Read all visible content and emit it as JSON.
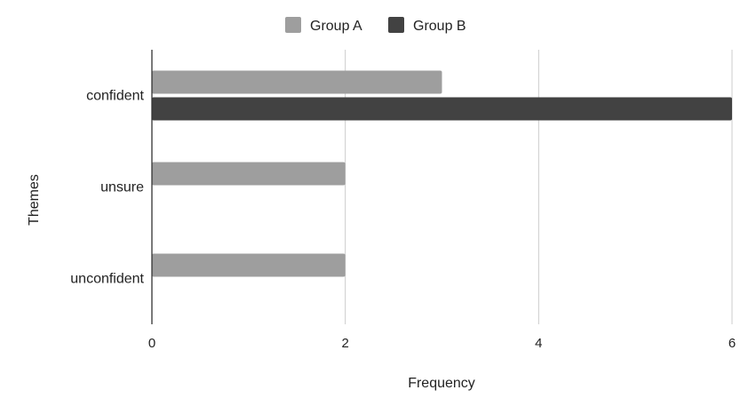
{
  "chart_data": {
    "type": "bar",
    "orientation": "horizontal",
    "categories": [
      "confident",
      "unsure",
      "unconfident"
    ],
    "series": [
      {
        "name": "Group A",
        "values": [
          3,
          2,
          2
        ],
        "color": "#9e9e9e"
      },
      {
        "name": "Group B",
        "values": [
          6,
          0,
          0
        ],
        "color": "#424242"
      }
    ],
    "xlabel": "Frequency",
    "ylabel": "Themes",
    "xlim": [
      0,
      6
    ],
    "xticks": [
      "0",
      "2",
      "4",
      "6"
    ],
    "grid": "vertical",
    "legend_position": "top-center"
  }
}
